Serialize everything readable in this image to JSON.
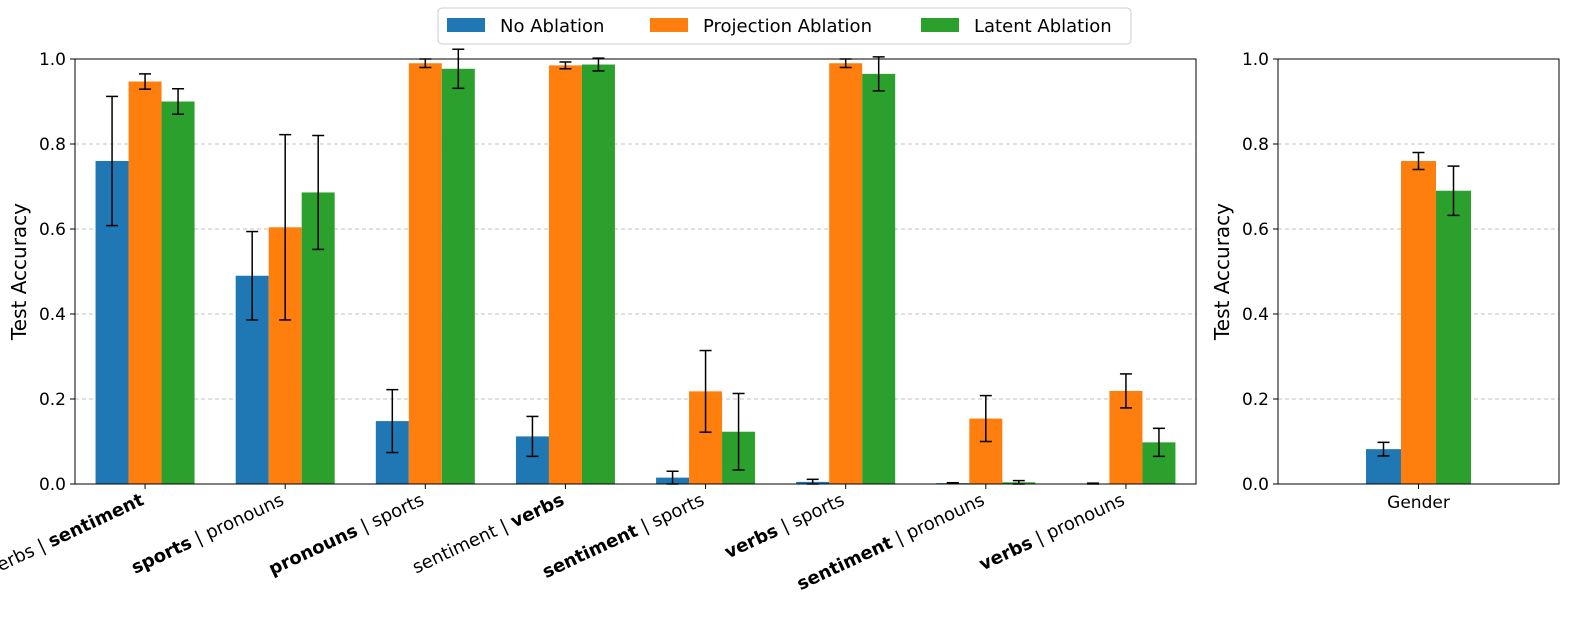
{
  "colors": {
    "no_ablation": "#1f77b4",
    "projection_ablation": "#ff7f0e",
    "latent_ablation": "#2ca02c",
    "grid": "#b0b0b0",
    "error_bar": "#000000"
  },
  "legend": {
    "location": "top-center",
    "entries": [
      "No Ablation",
      "Projection Ablation",
      "Latent Ablation"
    ]
  },
  "chart_data": [
    {
      "type": "bar",
      "title": "",
      "xlabel": "",
      "ylabel": "Test Accuracy",
      "ylim": [
        0,
        1
      ],
      "yticks": [
        "0.0",
        "0.2",
        "0.4",
        "0.6",
        "0.8",
        "1.0"
      ],
      "ytick_values": [
        0,
        0.2,
        0.4,
        0.6,
        0.8,
        1.0
      ],
      "grid": true,
      "categories": [
        [
          {
            "text": "verbs",
            "bold": false
          },
          {
            "text": " | ",
            "bold": false
          },
          {
            "text": "sentiment",
            "bold": true
          }
        ],
        [
          {
            "text": "sports",
            "bold": true
          },
          {
            "text": " | ",
            "bold": false
          },
          {
            "text": "pronouns",
            "bold": false
          }
        ],
        [
          {
            "text": "pronouns",
            "bold": true
          },
          {
            "text": " | ",
            "bold": false
          },
          {
            "text": "sports",
            "bold": false
          }
        ],
        [
          {
            "text": "sentiment",
            "bold": false
          },
          {
            "text": " | ",
            "bold": false
          },
          {
            "text": "verbs",
            "bold": true
          }
        ],
        [
          {
            "text": "sentiment",
            "bold": true
          },
          {
            "text": " | ",
            "bold": false
          },
          {
            "text": "sports",
            "bold": false
          }
        ],
        [
          {
            "text": "verbs",
            "bold": true
          },
          {
            "text": " | ",
            "bold": false
          },
          {
            "text": "sports",
            "bold": false
          }
        ],
        [
          {
            "text": "sentiment",
            "bold": true
          },
          {
            "text": " | ",
            "bold": false
          },
          {
            "text": "pronouns",
            "bold": false
          }
        ],
        [
          {
            "text": "verbs",
            "bold": true
          },
          {
            "text": " | ",
            "bold": false
          },
          {
            "text": "pronouns",
            "bold": false
          }
        ]
      ],
      "series": [
        {
          "name": "No Ablation",
          "values": [
            0.76,
            0.49,
            0.148,
            0.112,
            0.015,
            0.005,
            0.002,
            0.001
          ],
          "errors": [
            0.152,
            0.104,
            0.074,
            0.047,
            0.015,
            0.006,
            0.001,
            0.001
          ]
        },
        {
          "name": "Projection Ablation",
          "values": [
            0.947,
            0.604,
            0.99,
            0.985,
            0.218,
            0.99,
            0.154,
            0.219
          ],
          "errors": [
            0.018,
            0.218,
            0.01,
            0.008,
            0.096,
            0.01,
            0.054,
            0.04
          ]
        },
        {
          "name": "Latent Ablation",
          "values": [
            0.9,
            0.686,
            0.977,
            0.987,
            0.123,
            0.965,
            0.004,
            0.098
          ],
          "errors": [
            0.03,
            0.134,
            0.046,
            0.015,
            0.09,
            0.04,
            0.004,
            0.033
          ]
        }
      ]
    },
    {
      "type": "bar",
      "title": "",
      "xlabel": "",
      "ylabel": "Test Accuracy",
      "ylim": [
        0,
        1
      ],
      "yticks": [
        "0.0",
        "0.2",
        "0.4",
        "0.6",
        "0.8",
        "1.0"
      ],
      "ytick_values": [
        0,
        0.2,
        0.4,
        0.6,
        0.8,
        1.0
      ],
      "grid": true,
      "categories": [
        [
          {
            "text": "Gender",
            "bold": false
          }
        ]
      ],
      "series": [
        {
          "name": "No Ablation",
          "values": [
            0.082
          ],
          "errors": [
            0.016
          ]
        },
        {
          "name": "Projection Ablation",
          "values": [
            0.76
          ],
          "errors": [
            0.02
          ]
        },
        {
          "name": "Latent Ablation",
          "values": [
            0.69
          ],
          "errors": [
            0.058
          ]
        }
      ]
    }
  ]
}
